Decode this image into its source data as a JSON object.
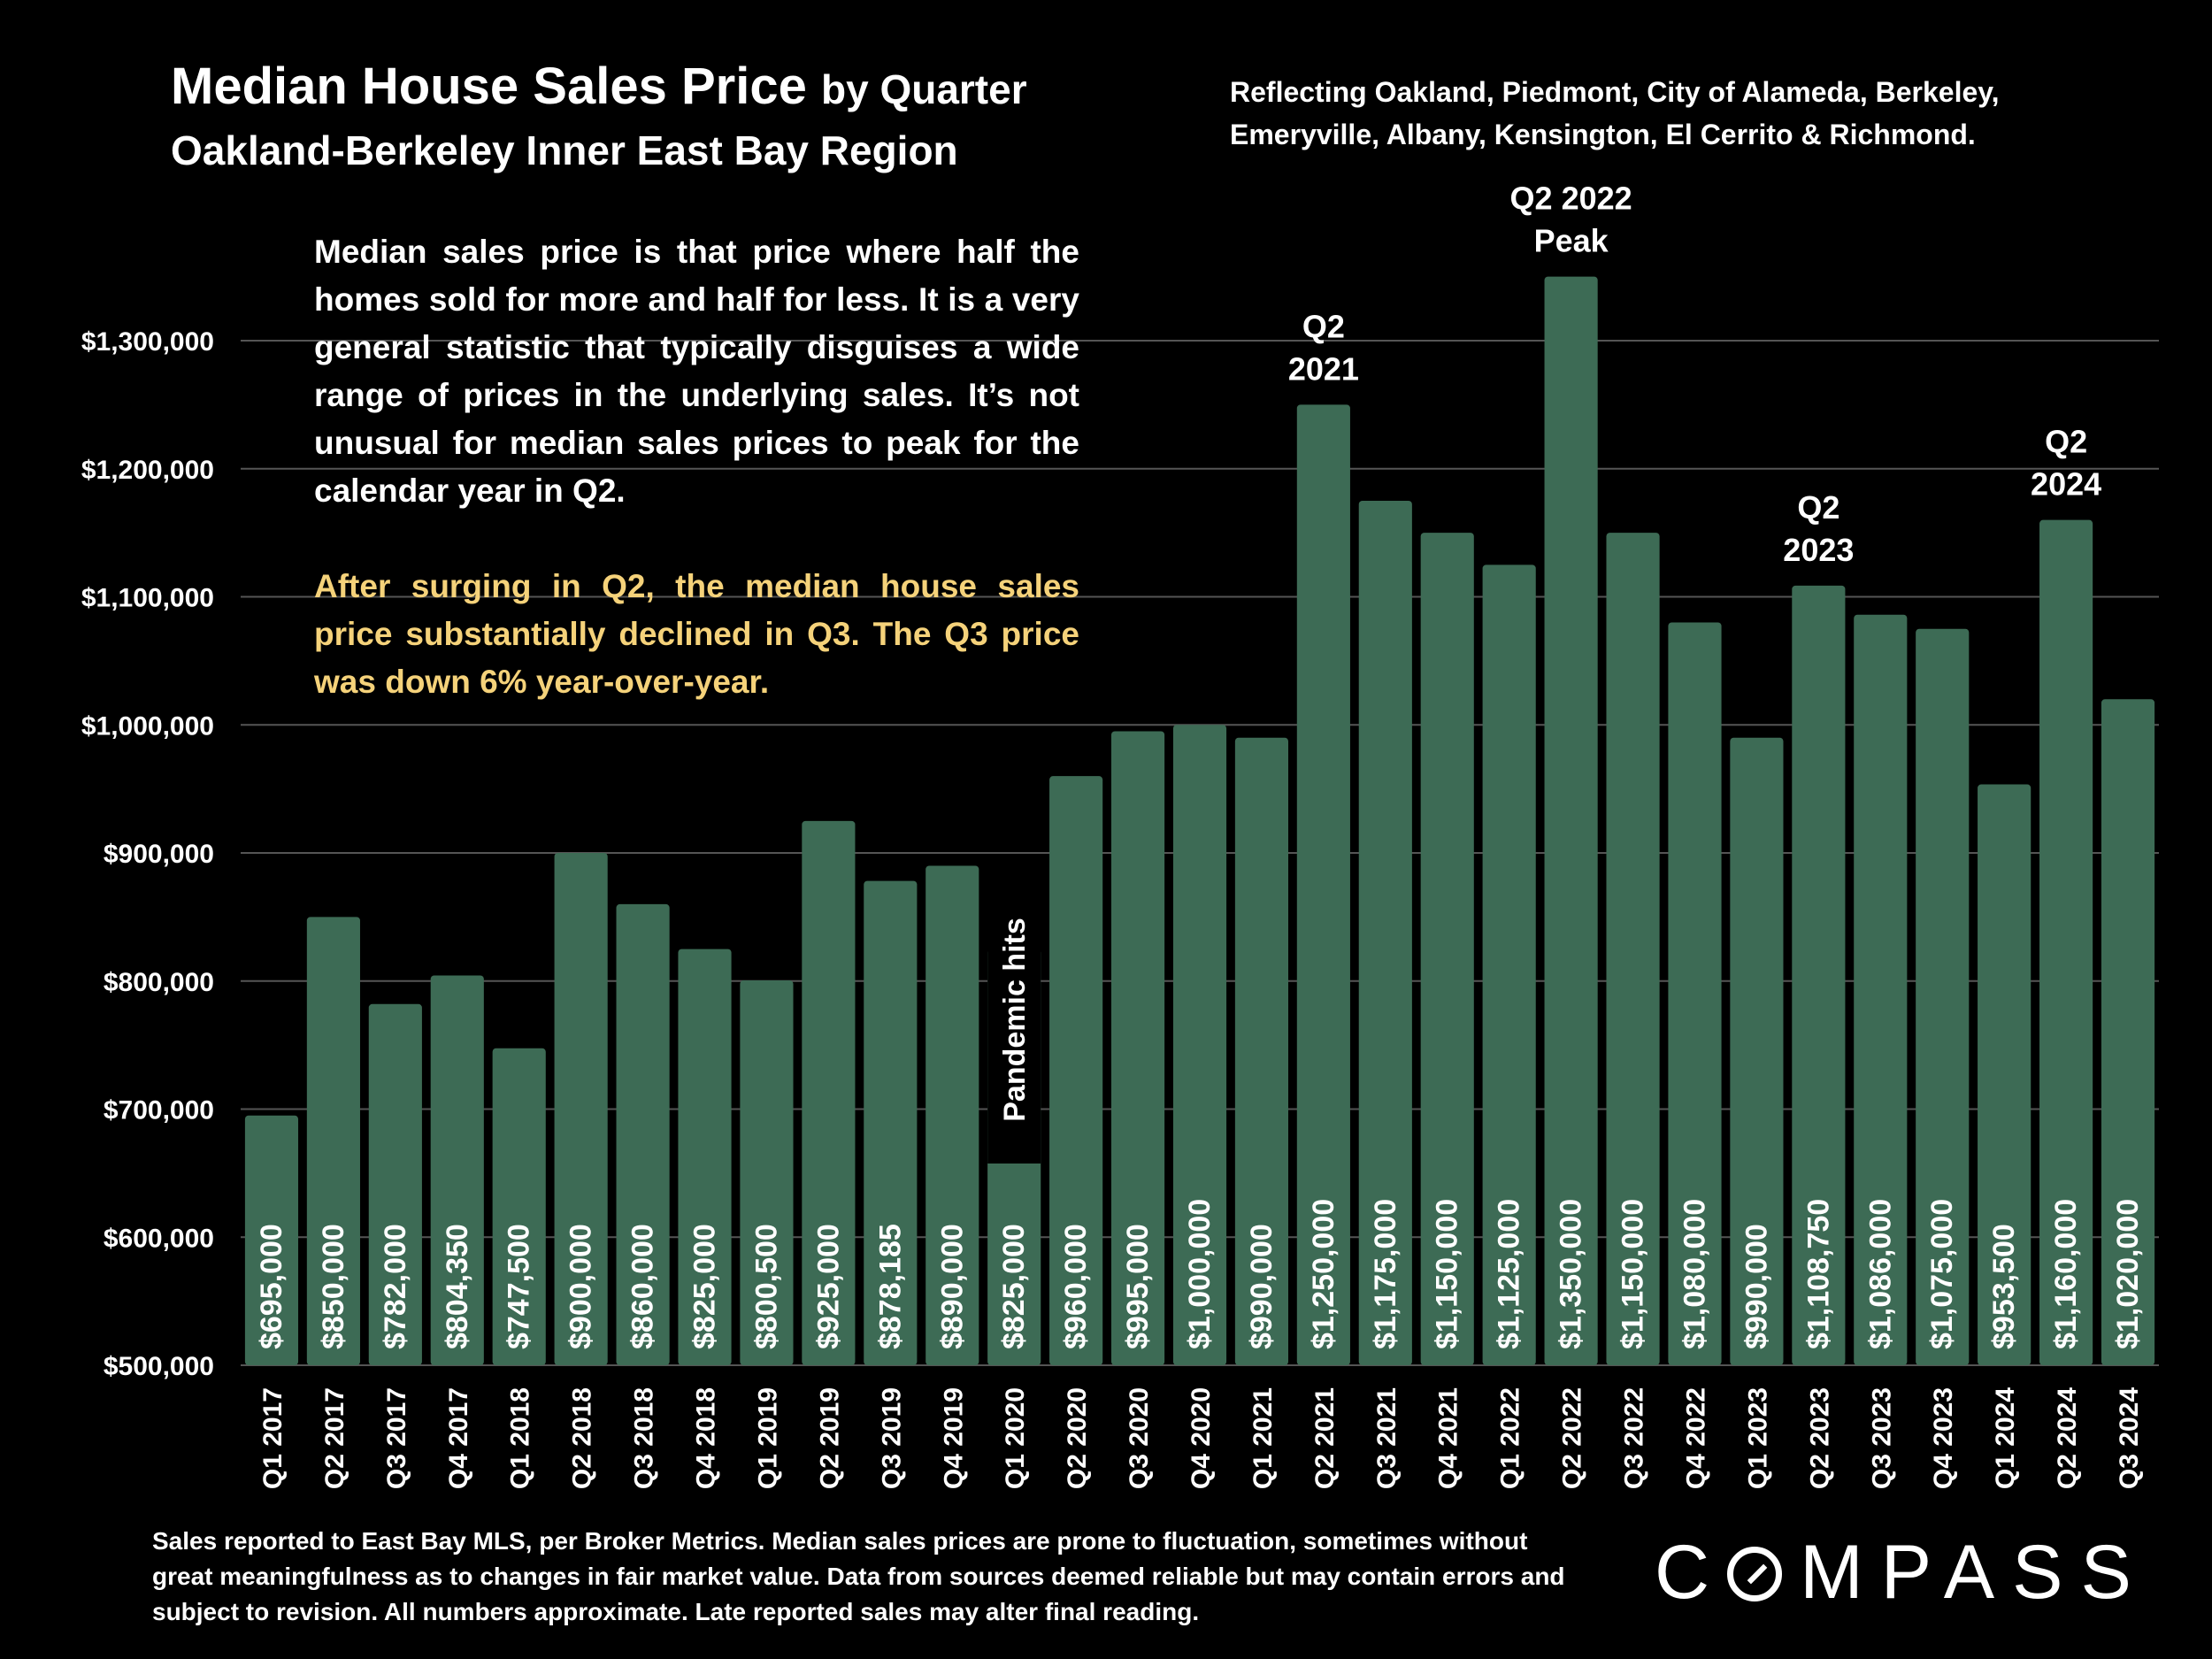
{
  "title": {
    "main": "Median House Sales Price",
    "main_suffix": "by Quarter",
    "sub": "Oakland-Berkeley Inner East Bay Region"
  },
  "region_note": "Reflecting Oakland, Piedmont, City of Alameda, Berkeley, Emeryville, Albany, Kensington, El Cerrito & Richmond.",
  "description": "Median sales price is that price where half the homes sold for more and half for less. It is a very general statistic that typically disguises a wide range of prices in the underlying sales. It’s not unusual for median sales prices to peak for the calendar year in Q2.",
  "note": "After surging in Q2, the median house sales price substantially declined in Q3. The Q3 price was down 6% year-over-year.",
  "footer": "Sales reported to East Bay MLS, per Broker Metrics. Median sales prices are prone to fluctuation, sometimes without great meaningfulness as to changes in fair market value. Data from sources deemed reliable but may contain errors and subject to revision. All numbers approximate. Late reported sales may alter final reading.",
  "logo": {
    "text_before": "C",
    "text_after": "MPASS"
  },
  "colors": {
    "background": "#000000",
    "bar": "#3d6b55",
    "text": "#ffffff",
    "accent": "#f5d27a",
    "grid": "#555555"
  },
  "chart_data": {
    "type": "bar",
    "categories": [
      "Q1 2017",
      "Q2 2017",
      "Q3 2017",
      "Q4 2017",
      "Q1 2018",
      "Q2 2018",
      "Q3 2018",
      "Q4 2018",
      "Q1 2019",
      "Q2 2019",
      "Q3 2019",
      "Q4 2019",
      "Q1 2020",
      "Q2 2020",
      "Q3 2020",
      "Q4 2020",
      "Q1 2021",
      "Q2 2021",
      "Q3 2021",
      "Q4 2021",
      "Q1 2022",
      "Q2 2022",
      "Q3 2022",
      "Q4 2022",
      "Q1 2023",
      "Q2 2023",
      "Q3 2023",
      "Q4 2023",
      "Q1 2024",
      "Q2 2024",
      "Q3 2024"
    ],
    "values": [
      695000,
      850000,
      782000,
      804350,
      747500,
      900000,
      860000,
      825000,
      800500,
      925000,
      878185,
      890000,
      825000,
      960000,
      995000,
      1000000,
      990000,
      1250000,
      1175000,
      1150000,
      1125000,
      1350000,
      1150000,
      1080000,
      990000,
      1108750,
      1086000,
      1075000,
      953500,
      1160000,
      1020000
    ],
    "labels": [
      "$695,000",
      "$850,000",
      "$782,000",
      "$804,350",
      "$747,500",
      "$900,000",
      "$860,000",
      "$825,000",
      "$800,500",
      "$925,000",
      "$878,185",
      "$890,000",
      "$825,000",
      "$960,000",
      "$995,000",
      "$1,000,000",
      "$990,000",
      "$1,250,000",
      "$1,175,000",
      "$1,150,000",
      "$1,125,000",
      "$1,350,000",
      "$1,150,000",
      "$1,080,000",
      "$990,000",
      "$1,108,750",
      "$1,086,000",
      "$1,075,000",
      "$953,500",
      "$1,160,000",
      "$1,020,000"
    ],
    "ylim": [
      500000,
      1350000
    ],
    "yticks": [
      500000,
      600000,
      700000,
      800000,
      900000,
      1000000,
      1100000,
      1200000,
      1300000
    ],
    "ytick_labels": [
      "$500,000",
      "$600,000",
      "$700,000",
      "$800,000",
      "$900,000",
      "$1,000,000",
      "$1,100,000",
      "$1,200,000",
      "$1,300,000"
    ],
    "grid": true,
    "xlabel": "",
    "ylabel": "",
    "annotations": [
      {
        "category": "Q2 2021",
        "lines": [
          "Q2",
          "2021"
        ]
      },
      {
        "category": "Q2 2022",
        "lines": [
          "Q2 2022",
          "Peak"
        ]
      },
      {
        "category": "Q2 2023",
        "lines": [
          "Q2",
          "2023"
        ]
      },
      {
        "category": "Q2 2024",
        "lines": [
          "Q2",
          "2024"
        ]
      },
      {
        "category": "Q1 2020",
        "text": "Pandemic hits",
        "orientation": "vertical"
      }
    ]
  }
}
